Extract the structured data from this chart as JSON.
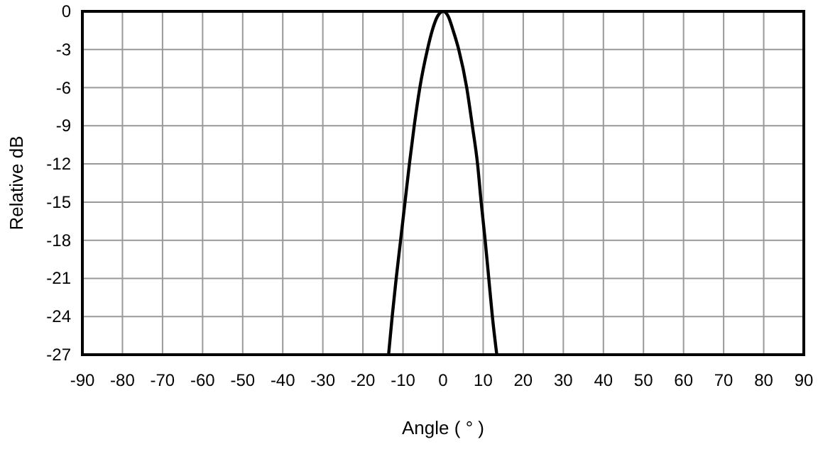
{
  "chart_data": {
    "type": "line",
    "xlabel": "Angle ( ° )",
    "ylabel": "Relative dB",
    "series": [
      {
        "color": "#000000",
        "x": [
          -13.6,
          -12.7,
          -11.7,
          -10.6,
          -9.5,
          -8.4,
          -7.2,
          -5.8,
          -3.9,
          -2.7,
          -1.4,
          0,
          1.3,
          2.5,
          3.9,
          5.9,
          7.3,
          8.6,
          9.5,
          10.5,
          11.4,
          12.3,
          13.4
        ],
        "values": [
          -27,
          -24,
          -21,
          -18,
          -15,
          -12,
          -9,
          -6,
          -3,
          -1.5,
          -0.4,
          0,
          -0.4,
          -1.5,
          -3,
          -6,
          -9,
          -12,
          -15,
          -18,
          -21,
          -24,
          -27
        ]
      }
    ],
    "xlim": [
      -90,
      90
    ],
    "xticks": [
      -90,
      -80,
      -70,
      -60,
      -50,
      -40,
      -30,
      -20,
      -10,
      0,
      10,
      20,
      30,
      40,
      50,
      60,
      70,
      80,
      90
    ],
    "ylim": [
      -27,
      0
    ],
    "yticks": [
      -27,
      -24,
      -21,
      -18,
      -15,
      -12,
      -9,
      -6,
      -3,
      0
    ],
    "grid": true,
    "marker": "none",
    "line_style": "solid"
  }
}
